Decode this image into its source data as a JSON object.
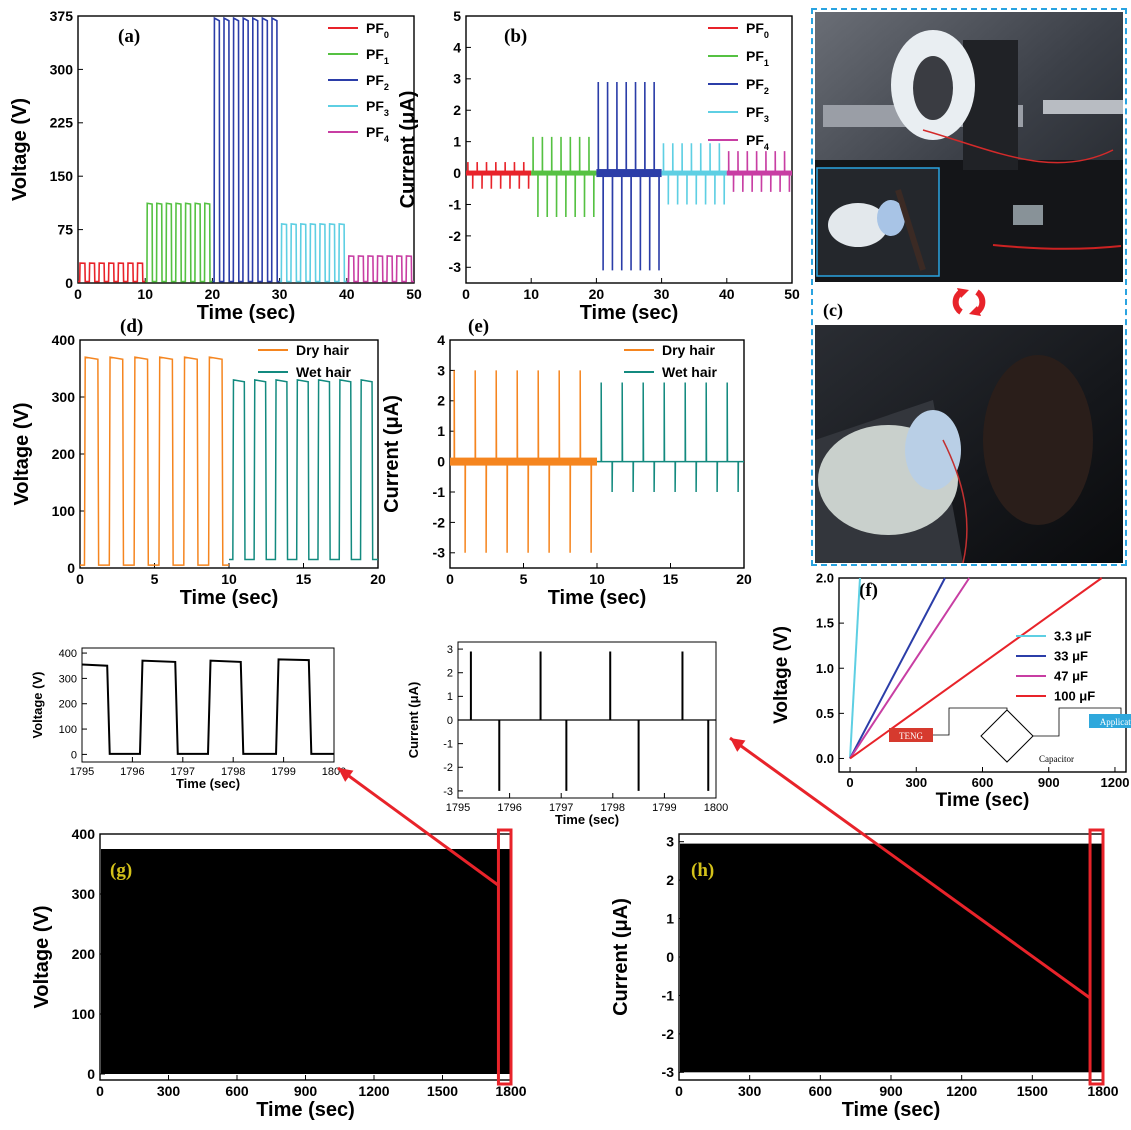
{
  "colors": {
    "pf0": "#e8232a",
    "pf1": "#55c142",
    "pf2": "#2b3da8",
    "pf3": "#5ecfe3",
    "pf4": "#c83ea3",
    "dry": "#f5851f",
    "wet": "#138a7f",
    "arrow": "#e8232a",
    "photo_border": "#2aa3e0",
    "cap33": "#5ecfe3",
    "cap33uF": "#2b3da8",
    "cap47": "#c83ea3",
    "cap100": "#e8232a"
  },
  "photo_panel": {
    "label": "(c)",
    "photos": [
      "photo-setup-top",
      "photo-inset-fur",
      "photo-setup-bottom"
    ],
    "rotate_icon": "rotate-arrows-icon"
  },
  "chart_data": [
    {
      "id": "a",
      "panel_label": "(a)",
      "type": "line",
      "xlabel": "Time (sec)",
      "ylabel": "Voltage (V)",
      "xlim": [
        0,
        50
      ],
      "ylim": [
        0,
        375
      ],
      "xticks": [
        0,
        10,
        20,
        30,
        40,
        50
      ],
      "yticks": [
        0,
        75,
        150,
        225,
        300,
        375
      ],
      "legend_position": "top-right",
      "series": [
        {
          "name": "PF0",
          "base": "PF",
          "sub": "0",
          "color": "#e8232a",
          "t_start": 0,
          "t_end": 10,
          "peak_value": 28,
          "baseline": 2,
          "pulses": 7
        },
        {
          "name": "PF1",
          "base": "PF",
          "sub": "1",
          "color": "#55c142",
          "t_start": 10,
          "t_end": 20,
          "peak_value": 112,
          "baseline": 2,
          "pulses": 7
        },
        {
          "name": "PF2",
          "base": "PF",
          "sub": "2",
          "color": "#2b3da8",
          "t_start": 20,
          "t_end": 30,
          "peak_value": 372,
          "baseline": 2,
          "pulses": 7
        },
        {
          "name": "PF3",
          "base": "PF",
          "sub": "3",
          "color": "#5ecfe3",
          "t_start": 30,
          "t_end": 40,
          "peak_value": 83,
          "baseline": 2,
          "pulses": 7
        },
        {
          "name": "PF4",
          "base": "PF",
          "sub": "4",
          "color": "#c83ea3",
          "t_start": 40,
          "t_end": 50,
          "peak_value": 38,
          "baseline": 2,
          "pulses": 7
        }
      ]
    },
    {
      "id": "b",
      "panel_label": "(b)",
      "type": "line",
      "xlabel": "Time (sec)",
      "ylabel": "Current (μA)",
      "xlim": [
        0,
        50
      ],
      "ylim": [
        -3.5,
        5
      ],
      "xticks": [
        0,
        10,
        20,
        30,
        40,
        50
      ],
      "yticks": [
        -3,
        -2,
        -1,
        0,
        1,
        2,
        3,
        4,
        5
      ],
      "legend_position": "top-right",
      "series": [
        {
          "name": "PF0",
          "base": "PF",
          "sub": "0",
          "color": "#e8232a",
          "t_start": 0,
          "t_end": 10,
          "pos_peak": 0.35,
          "neg_peak": -0.5,
          "pulses": 7
        },
        {
          "name": "PF1",
          "base": "PF",
          "sub": "1",
          "color": "#55c142",
          "t_start": 10,
          "t_end": 20,
          "pos_peak": 1.15,
          "neg_peak": -1.4,
          "pulses": 7
        },
        {
          "name": "PF2",
          "base": "PF",
          "sub": "2",
          "color": "#2b3da8",
          "t_start": 20,
          "t_end": 30,
          "pos_peak": 2.9,
          "neg_peak": -3.1,
          "pulses": 7
        },
        {
          "name": "PF3",
          "base": "PF",
          "sub": "3",
          "color": "#5ecfe3",
          "t_start": 30,
          "t_end": 40,
          "pos_peak": 0.95,
          "neg_peak": -1.0,
          "pulses": 7
        },
        {
          "name": "PF4",
          "base": "PF",
          "sub": "4",
          "color": "#c83ea3",
          "t_start": 40,
          "t_end": 50,
          "pos_peak": 0.7,
          "neg_peak": -0.6,
          "pulses": 7
        }
      ]
    },
    {
      "id": "d",
      "panel_label": "(d)",
      "type": "line",
      "xlabel": "Time (sec)",
      "ylabel": "Voltage (V)",
      "xlim": [
        0,
        20
      ],
      "ylim": [
        0,
        400
      ],
      "xticks": [
        0,
        5,
        10,
        15,
        20
      ],
      "yticks": [
        0,
        100,
        200,
        300,
        400
      ],
      "legend_position": "top-right",
      "series": [
        {
          "name": "Dry hair",
          "color": "#f5851f",
          "t_start": 0,
          "t_end": 10,
          "peak_value": 370,
          "baseline": 5,
          "pulses": 6
        },
        {
          "name": "Wet hair",
          "color": "#138a7f",
          "t_start": 10,
          "t_end": 20,
          "peak_value": 330,
          "baseline": 15,
          "pulses": 7
        }
      ]
    },
    {
      "id": "e",
      "panel_label": "(e)",
      "type": "line",
      "xlabel": "Time (sec)",
      "ylabel": "Current (μA)",
      "xlim": [
        0,
        20
      ],
      "ylim": [
        -3.5,
        4
      ],
      "xticks": [
        0,
        5,
        10,
        15,
        20
      ],
      "yticks": [
        -3,
        -2,
        -1,
        0,
        1,
        2,
        3,
        4
      ],
      "legend_position": "top-right",
      "series": [
        {
          "name": "Dry hair",
          "color": "#f5851f",
          "t_start": 0,
          "t_end": 10,
          "pos_peak": 3.0,
          "neg_peak": -3.0,
          "pulses": 7
        },
        {
          "name": "Wet hair",
          "color": "#138a7f",
          "t_start": 10,
          "t_end": 20,
          "pos_peak": 2.6,
          "neg_peak": -1.0,
          "pulses": 7
        }
      ]
    },
    {
      "id": "f",
      "panel_label": "(f)",
      "type": "line",
      "xlabel": "Time (sec)",
      "ylabel": "Voltage (V)",
      "xlim": [
        -50,
        1250
      ],
      "ylim": [
        -0.15,
        2.0
      ],
      "xticks": [
        0,
        300,
        600,
        900,
        1200
      ],
      "yticks": [
        0.0,
        0.5,
        1.0,
        1.5,
        2.0
      ],
      "legend_position": "right",
      "series": [
        {
          "name": "3.3 μF",
          "color": "#5ecfe3",
          "x": [
            0,
            45
          ],
          "y": [
            0,
            2.0
          ]
        },
        {
          "name": "33 μF",
          "color": "#2b3da8",
          "x": [
            0,
            430
          ],
          "y": [
            0,
            2.0
          ]
        },
        {
          "name": "47 μF",
          "color": "#c83ea3",
          "x": [
            0,
            540
          ],
          "y": [
            0,
            2.0
          ]
        },
        {
          "name": "100 μF",
          "color": "#e8232a",
          "x": [
            0,
            1140
          ],
          "y": [
            0,
            2.0
          ]
        }
      ],
      "inset": {
        "source": "TENG",
        "load": "Application",
        "storage": "Capacitor"
      }
    },
    {
      "id": "g_zoom",
      "panel_label": "",
      "type": "line",
      "xlabel": "Time (sec)",
      "ylabel": "Voltage (V)",
      "xlim": [
        1795,
        1800
      ],
      "ylim": [
        -30,
        420
      ],
      "xticks": [
        1795,
        1796,
        1797,
        1798,
        1799,
        1800
      ],
      "yticks": [
        0,
        100,
        200,
        300,
        400
      ],
      "series": [
        {
          "name": "",
          "color": "#000000",
          "x": [
            1795,
            1795.5,
            1795.55,
            1796.15,
            1796.2,
            1796.85,
            1796.9,
            1797.5,
            1797.55,
            1798.15,
            1798.2,
            1798.85,
            1798.9,
            1799.5,
            1799.55,
            1800
          ],
          "y": [
            355,
            350,
            2,
            2,
            370,
            365,
            2,
            2,
            370,
            365,
            2,
            2,
            375,
            372,
            2,
            2
          ]
        }
      ]
    },
    {
      "id": "h_zoom",
      "panel_label": "",
      "type": "line",
      "xlabel": "Time (sec)",
      "ylabel": "Current (μA)",
      "xlim": [
        1795,
        1800
      ],
      "ylim": [
        -3.3,
        3.3
      ],
      "xticks": [
        1795,
        1796,
        1797,
        1798,
        1799,
        1800
      ],
      "yticks": [
        -3,
        -2,
        -1,
        0,
        1,
        2,
        3
      ],
      "series": [
        {
          "name": "",
          "color": "#000000",
          "pos_spikes": [
            1795.25,
            1796.6,
            1797.95,
            1799.35
          ],
          "pos_value": 2.9,
          "neg_spikes": [
            1795.8,
            1797.1,
            1798.5,
            1799.85
          ],
          "neg_value": -3.0
        }
      ]
    },
    {
      "id": "g",
      "panel_label": "(g)",
      "type": "area",
      "xlabel": "Time (sec)",
      "ylabel": "Voltage (V)",
      "xlim": [
        0,
        1800
      ],
      "ylim": [
        -10,
        400
      ],
      "xticks": [
        0,
        300,
        600,
        900,
        1200,
        1500,
        1800
      ],
      "yticks": [
        0,
        100,
        200,
        300,
        400
      ],
      "series": [
        {
          "name": "",
          "color": "#000000",
          "upper": 375,
          "lower": 0
        }
      ],
      "highlight": {
        "x_start": 1745,
        "x_end": 1800
      }
    },
    {
      "id": "h",
      "panel_label": "(h)",
      "type": "area",
      "xlabel": "Time (sec)",
      "ylabel": "Current (μA)",
      "xlim": [
        0,
        1800
      ],
      "ylim": [
        -3.2,
        3.2
      ],
      "xticks": [
        0,
        300,
        600,
        900,
        1200,
        1500,
        1800
      ],
      "yticks": [
        -3,
        -2,
        -1,
        0,
        1,
        2,
        3
      ],
      "series": [
        {
          "name": "",
          "color": "#000000",
          "upper": 2.95,
          "lower": -3.0
        }
      ],
      "highlight": {
        "x_start": 1745,
        "x_end": 1800
      }
    }
  ]
}
